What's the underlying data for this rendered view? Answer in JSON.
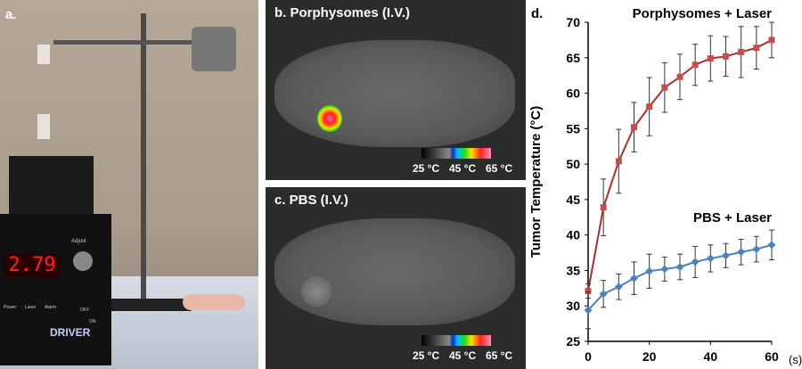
{
  "panels": {
    "a": {
      "label": "a.",
      "display": "2.79",
      "driver": "DRIVER",
      "adjust": "Adjust",
      "power": "Power",
      "laser": "Laser",
      "alarm": "Alarm",
      "off": "OFF",
      "on": "ON"
    },
    "b": {
      "label": "b. Porphysomes (I.V.)",
      "scale": [
        "25 °C",
        "45 °C",
        "65 °C"
      ]
    },
    "c": {
      "label": "c. PBS  (I.V.)",
      "scale": [
        "25 °C",
        "45 °C",
        "65 °C"
      ]
    },
    "d": {
      "label": "d."
    }
  },
  "chart_data": {
    "type": "line",
    "ylabel": "Tumor Temperature (°C)",
    "xunit": "(s)",
    "xlim": [
      0,
      60
    ],
    "ylim": [
      25,
      70
    ],
    "xticks": [
      0,
      20,
      40,
      60
    ],
    "yticks": [
      25,
      30,
      35,
      40,
      45,
      50,
      55,
      60,
      65,
      70
    ],
    "x": [
      0,
      5,
      10,
      15,
      20,
      25,
      30,
      35,
      40,
      45,
      50,
      55,
      60
    ],
    "series": [
      {
        "name": "Porphysomes + Laser",
        "color": "#c0504d",
        "marker": "square",
        "values": [
          32.1,
          43.9,
          50.4,
          55.2,
          58.1,
          60.8,
          62.3,
          64.0,
          64.9,
          65.2,
          65.8,
          66.4,
          67.5
        ],
        "error": [
          1.0,
          4.0,
          4.5,
          3.5,
          4.1,
          3.5,
          3.2,
          2.9,
          3.2,
          2.8,
          3.6,
          3.0,
          2.5
        ]
      },
      {
        "name": "PBS + Laser",
        "color": "#4f81bd",
        "marker": "diamond",
        "values": [
          29.4,
          31.7,
          32.7,
          33.9,
          34.9,
          35.2,
          35.5,
          36.2,
          36.7,
          37.1,
          37.6,
          38.0,
          38.6
        ],
        "error": [
          2.6,
          1.9,
          1.8,
          2.3,
          2.4,
          1.7,
          1.8,
          2.2,
          1.9,
          1.7,
          1.8,
          1.8,
          2.1
        ]
      }
    ],
    "grid": false
  }
}
